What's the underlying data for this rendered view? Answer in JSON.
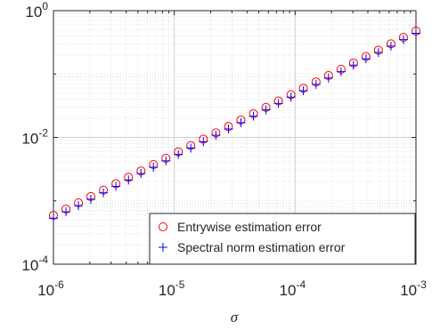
{
  "chart_data": {
    "type": "scatter",
    "xlabel": "σ",
    "ylabel": "",
    "x_scale": "log",
    "y_scale": "log",
    "xlim": [
      1e-06,
      0.001
    ],
    "ylim": [
      0.0001,
      1
    ],
    "x_ticks": [
      {
        "base": "10",
        "exp": "-6"
      },
      {
        "base": "10",
        "exp": "-5"
      },
      {
        "base": "10",
        "exp": "-4"
      },
      {
        "base": "10",
        "exp": "-3"
      }
    ],
    "y_ticks": [
      {
        "base": "10",
        "exp": "-4"
      },
      {
        "base": "10",
        "exp": "-2"
      },
      {
        "base": "10",
        "exp": "0"
      }
    ],
    "grid": true,
    "minor_grid": true,
    "legend_position": "bottom-right",
    "x": [
      1e-06,
      1.27e-06,
      1.61e-06,
      2.04e-06,
      2.59e-06,
      3.29e-06,
      4.18e-06,
      5.3e-06,
      6.72e-06,
      8.53e-06,
      1.08e-05,
      1.37e-05,
      1.74e-05,
      2.21e-05,
      2.81e-05,
      3.56e-05,
      4.52e-05,
      5.74e-05,
      7.28e-05,
      9.24e-05,
      0.000117,
      0.000149,
      0.000189,
      0.00024,
      0.000304,
      0.000386,
      0.000489,
      0.000621,
      0.000788,
      0.001
    ],
    "series": [
      {
        "name": "Entrywise estimation error",
        "marker": "circle",
        "color": "#ff0000",
        "values": [
          0.00059,
          0.00074,
          0.00093,
          0.00117,
          0.00148,
          0.00186,
          0.00235,
          0.00296,
          0.00373,
          0.0047,
          0.00592,
          0.00746,
          0.0094,
          0.0118,
          0.0149,
          0.0188,
          0.0237,
          0.0298,
          0.0376,
          0.0474,
          0.0597,
          0.0752,
          0.0948,
          0.119,
          0.15,
          0.189,
          0.238,
          0.3,
          0.379,
          0.477
        ]
      },
      {
        "name": "Spectral norm estimation error",
        "marker": "plus",
        "color": "#0000ff",
        "values": [
          0.00053,
          0.00067,
          0.00084,
          0.00106,
          0.00134,
          0.00169,
          0.00213,
          0.00269,
          0.00339,
          0.00427,
          0.00538,
          0.00678,
          0.00855,
          0.0108,
          0.0136,
          0.0171,
          0.0216,
          0.0272,
          0.0343,
          0.0432,
          0.0545,
          0.0687,
          0.0866,
          0.109,
          0.138,
          0.174,
          0.219,
          0.276,
          0.348,
          0.439
        ]
      }
    ]
  }
}
